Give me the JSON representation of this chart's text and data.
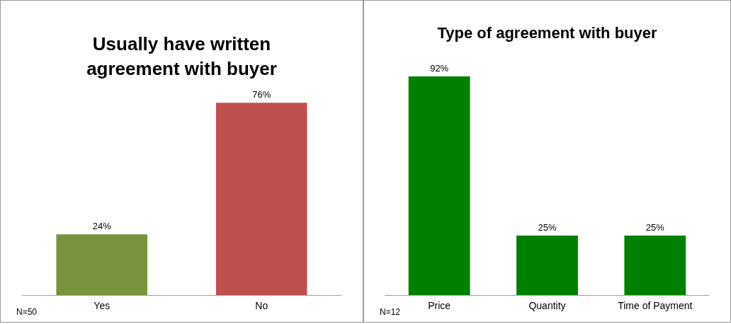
{
  "chart_data": [
    {
      "type": "bar",
      "title": "Usually have written\nagreement with buyer",
      "categories": [
        "Yes",
        "No"
      ],
      "values": [
        24,
        76
      ],
      "colors": [
        "#77933c",
        "#c0504d"
      ],
      "value_labels": [
        "24%",
        "76%"
      ],
      "annotations": [
        "N=50"
      ]
    },
    {
      "type": "bar",
      "title": "Type of agreement with buyer",
      "categories": [
        "Price",
        "Quantity",
        "Time of Payment"
      ],
      "values": [
        92,
        25,
        25
      ],
      "colors": [
        "#008000",
        "#008000",
        "#008000"
      ],
      "value_labels": [
        "92%",
        "25%",
        "25%"
      ],
      "annotations": [
        "N=12"
      ]
    }
  ]
}
